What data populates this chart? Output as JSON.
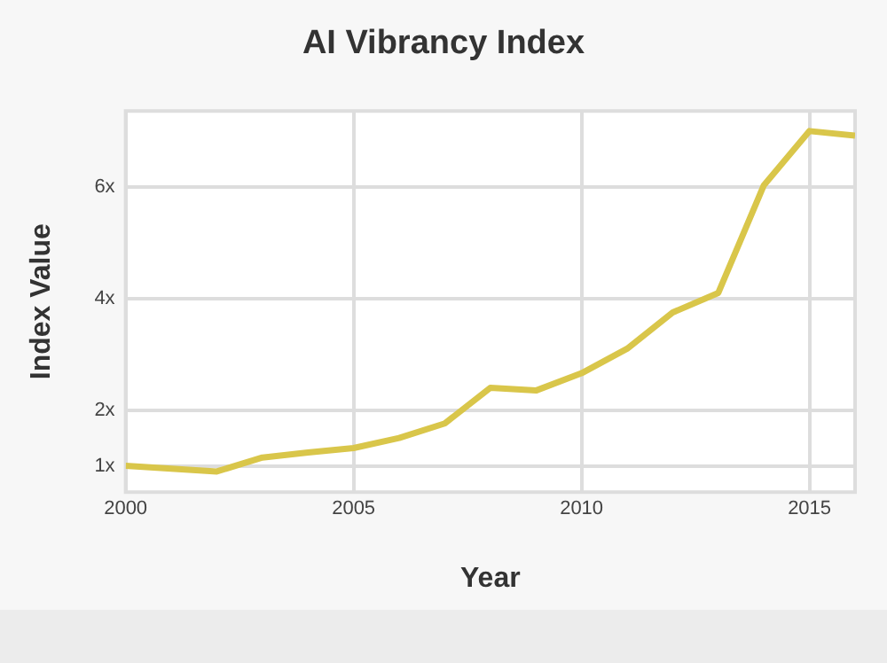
{
  "chart_data": {
    "type": "line",
    "title": "AI Vibrancy Index",
    "xlabel": "Year",
    "ylabel": "Index Value",
    "x": [
      2000,
      2001,
      2002,
      2003,
      2004,
      2005,
      2006,
      2007,
      2008,
      2009,
      2010,
      2011,
      2012,
      2013,
      2014,
      2015,
      2016
    ],
    "series": [
      {
        "color": "#d9c64a",
        "values": [
          1.0,
          0.95,
          0.9,
          1.15,
          1.24,
          1.32,
          1.5,
          1.76,
          2.4,
          2.35,
          2.66,
          3.1,
          3.75,
          4.1,
          6.03,
          7.0,
          6.92
        ]
      }
    ],
    "xlim": [
      2000,
      2016
    ],
    "xticks": [
      2000,
      2005,
      2010,
      2015
    ],
    "ylim": [
      0.53,
      7.36
    ],
    "yticks": [
      {
        "value": 1,
        "label": "1x"
      },
      {
        "value": 2,
        "label": "2x"
      },
      {
        "value": 4,
        "label": "4x"
      },
      {
        "value": 6,
        "label": "6x"
      }
    ],
    "grid": true,
    "legend": false,
    "marker": "none",
    "line_style": "solid"
  }
}
